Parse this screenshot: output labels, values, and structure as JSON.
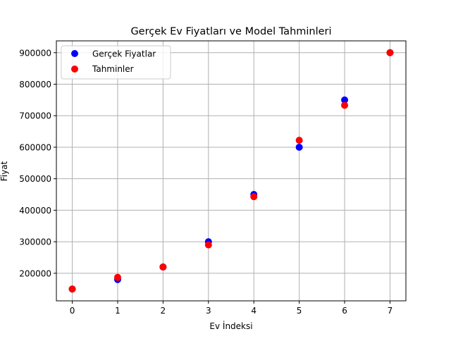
{
  "chart_data": {
    "type": "scatter",
    "title": "Gerçek Ev Fiyatları ve Model Tahminleri",
    "xlabel": "Ev İndeksi",
    "ylabel": "Fiyat",
    "xlim": [
      -0.35,
      7.35
    ],
    "ylim": [
      112500,
      937500
    ],
    "x_ticks": [
      0,
      1,
      2,
      3,
      4,
      5,
      6,
      7
    ],
    "x_tick_labels": [
      "0",
      "1",
      "2",
      "3",
      "4",
      "5",
      "6",
      "7"
    ],
    "y_ticks": [
      200000,
      300000,
      400000,
      500000,
      600000,
      700000,
      800000,
      900000
    ],
    "y_tick_labels": [
      "200000",
      "300000",
      "400000",
      "500000",
      "600000",
      "700000",
      "800000",
      "900000"
    ],
    "grid": true,
    "legend_position": "upper-left",
    "series": [
      {
        "name": "Gerçek Fiyatlar",
        "color": "#0000ff",
        "x": [
          0,
          1,
          2,
          3,
          4,
          5,
          6,
          7
        ],
        "y": [
          150000,
          180000,
          220000,
          300000,
          450000,
          600000,
          750000,
          900000
        ]
      },
      {
        "name": "Tahminler",
        "color": "#ff0000",
        "x": [
          0,
          1,
          2,
          3,
          4,
          5,
          6,
          7
        ],
        "y": [
          150000,
          187000,
          220000,
          290000,
          443000,
          622000,
          733000,
          900000
        ]
      }
    ]
  }
}
